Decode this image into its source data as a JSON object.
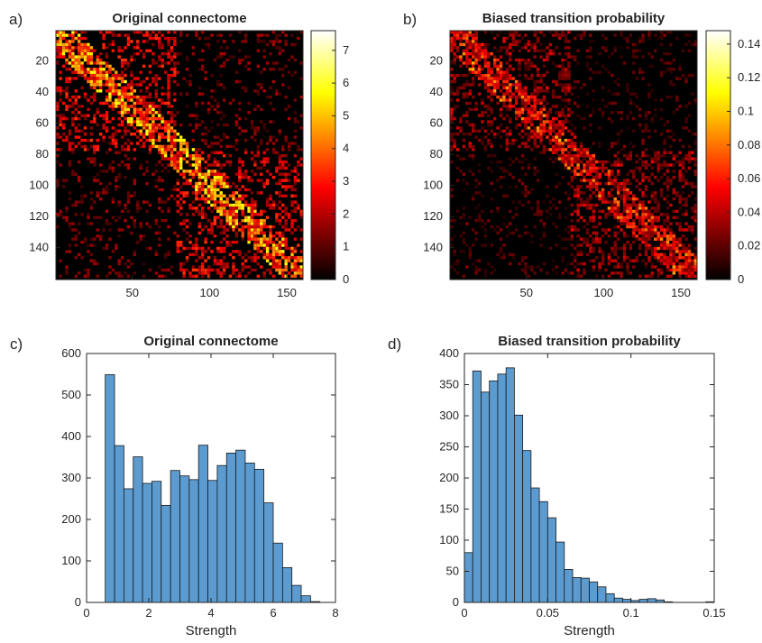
{
  "chart_data": [
    {
      "panel": "a)",
      "type": "heatmap",
      "title": "Original connectome",
      "matrix_size": 160,
      "x_ticks": [
        50,
        100,
        150
      ],
      "y_ticks": [
        20,
        40,
        60,
        80,
        100,
        120,
        140
      ],
      "colorbar": {
        "colormap": "hot",
        "range": [
          0,
          7.6
        ],
        "ticks": [
          0,
          1,
          2,
          3,
          4,
          5,
          6,
          7
        ]
      }
    },
    {
      "panel": "b)",
      "type": "heatmap",
      "title": "Biased transition probability",
      "matrix_size": 160,
      "x_ticks": [
        50,
        100,
        150
      ],
      "y_ticks": [
        20,
        40,
        60,
        80,
        100,
        120,
        140
      ],
      "colorbar": {
        "colormap": "hot",
        "range": [
          0,
          0.148
        ],
        "ticks": [
          0,
          0.02,
          0.04,
          0.06,
          0.08,
          0.1,
          0.12,
          0.14
        ]
      }
    },
    {
      "panel": "c)",
      "type": "bar",
      "subtype": "histogram",
      "title": "Original connectome",
      "xlabel": "Strength",
      "ylabel": "",
      "xlim": [
        0,
        8
      ],
      "ylim": [
        0,
        600
      ],
      "x_ticks": [
        0,
        2,
        4,
        6,
        8
      ],
      "y_ticks": [
        0,
        100,
        200,
        300,
        400,
        500,
        600
      ],
      "bin_edges": [
        0.6,
        0.9,
        1.2,
        1.5,
        1.8,
        2.1,
        2.4,
        2.7,
        3.0,
        3.3,
        3.6,
        3.9,
        4.2,
        4.5,
        4.8,
        5.1,
        5.4,
        5.7,
        6.0,
        6.3,
        6.6,
        6.9,
        7.2,
        7.5,
        7.8
      ],
      "values": [
        549,
        378,
        274,
        351,
        287,
        292,
        234,
        318,
        305,
        296,
        379,
        294,
        330,
        360,
        367,
        336,
        321,
        240,
        143,
        84,
        41,
        16,
        2,
        0
      ]
    },
    {
      "panel": "d)",
      "type": "bar",
      "subtype": "histogram",
      "title": "Biased transition probability",
      "xlabel": "Strength",
      "ylabel": "",
      "xlim": [
        0,
        0.15
      ],
      "ylim": [
        0,
        400
      ],
      "x_ticks": [
        0,
        0.05,
        0.1,
        0.15
      ],
      "y_ticks": [
        0,
        50,
        100,
        150,
        200,
        250,
        300,
        350,
        400
      ],
      "bin_edges": [
        0.0,
        0.005,
        0.01,
        0.015,
        0.02,
        0.025,
        0.03,
        0.035,
        0.04,
        0.045,
        0.05,
        0.055,
        0.06,
        0.065,
        0.07,
        0.075,
        0.08,
        0.085,
        0.09,
        0.095,
        0.1,
        0.105,
        0.11,
        0.115,
        0.12,
        0.125,
        0.13,
        0.135,
        0.14,
        0.145,
        0.15
      ],
      "values": [
        80,
        372,
        338,
        356,
        367,
        377,
        301,
        244,
        184,
        162,
        136,
        97,
        53,
        40,
        39,
        33,
        25,
        14,
        7,
        5,
        3,
        5,
        6,
        4,
        1,
        0,
        0,
        0,
        0,
        1
      ]
    }
  ]
}
